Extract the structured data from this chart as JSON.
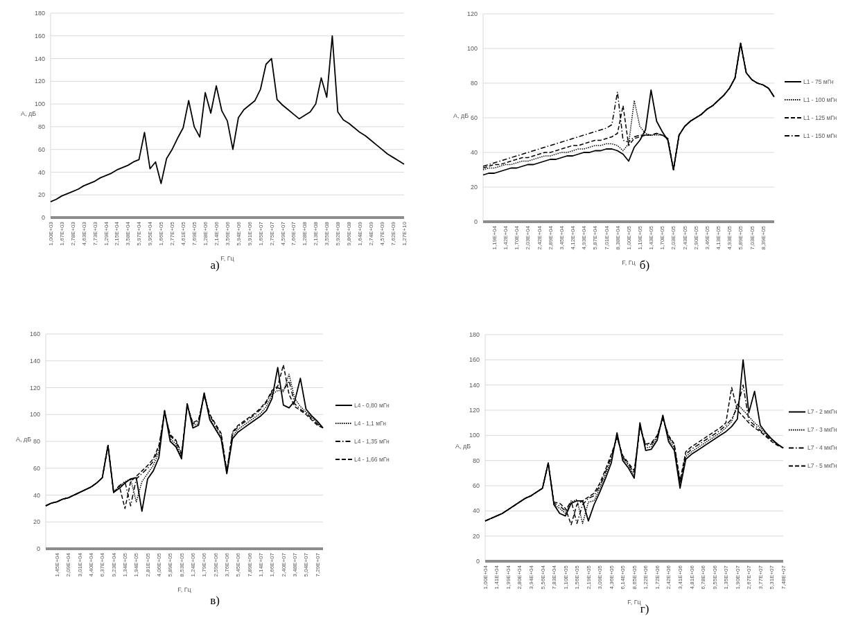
{
  "chart_data": [
    {
      "type": "line",
      "xlabel": "F, Гц",
      "ylabel": "А, дБ",
      "annotations": [
        "а)"
      ],
      "ylim": [
        0,
        180
      ],
      "yticks": [
        0,
        20,
        40,
        60,
        80,
        100,
        120,
        140,
        160,
        180
      ],
      "grid": "y",
      "legend": false,
      "categories": [
        "1,00E+03",
        null,
        "1,67E+03",
        null,
        "2,78E+03",
        null,
        "4,63E+03",
        null,
        "7,73E+03",
        null,
        "1,29E+04",
        null,
        "2,15E+04",
        null,
        "3,58E+04",
        null,
        "5,97E+04",
        null,
        "9,95E+04",
        null,
        "1,66E+05",
        null,
        "2,77E+05",
        null,
        "4,61E+05",
        null,
        "7,69E+05",
        null,
        "1,28E+06",
        null,
        "2,14E+06",
        null,
        "3,56E+06",
        null,
        "5,94E+06",
        null,
        "9,91E+06",
        null,
        "1,65E+07",
        null,
        "2,75E+07",
        null,
        "4,59E+07",
        null,
        "7,66E+07",
        null,
        "1,28E+08",
        null,
        "2,13E+08",
        null,
        "3,55E+08",
        null,
        "5,92E+08",
        null,
        "9,86E+08",
        null,
        "1,64E+09",
        null,
        "2,74E+09",
        null,
        "4,57E+09",
        null,
        "7,62E+09",
        null,
        "1,27E+10"
      ],
      "series": [
        {
          "color": "#000000",
          "line_style": "solid",
          "values": [
            14,
            16,
            19,
            21,
            23,
            25,
            28,
            30,
            32,
            35,
            37,
            39,
            42,
            44,
            46,
            49,
            51,
            75,
            43,
            49,
            30,
            52,
            60,
            70,
            79,
            103,
            80,
            71,
            110,
            92,
            116,
            94,
            85,
            60,
            88,
            95,
            99,
            103,
            113,
            135,
            140,
            104,
            99,
            95,
            91,
            87,
            90,
            93,
            100,
            123,
            106,
            160,
            93,
            86,
            83,
            79,
            75,
            72,
            68,
            64,
            60,
            56,
            53,
            50,
            47
          ]
        }
      ]
    },
    {
      "type": "line",
      "xlabel": "F, Гц",
      "ylabel": "А, дБ",
      "annotations": [
        "б)"
      ],
      "ylim": [
        0,
        120
      ],
      "yticks": [
        0,
        20,
        40,
        60,
        80,
        100,
        120
      ],
      "grid": "y",
      "legend": "right",
      "categories": [
        null,
        null,
        "1,19E+04",
        null,
        "1,42E+04",
        null,
        "1,70E+04",
        null,
        "2,03E+04",
        null,
        "2,42E+04",
        null,
        "2,89E+04",
        null,
        "3,45E+04",
        null,
        "4,12E+04",
        null,
        "4,93E+04",
        null,
        "5,87E+04",
        null,
        "7,01E+04",
        null,
        "8,38E+04",
        null,
        "1,00E+05",
        null,
        "1,19E+05",
        null,
        "1,43E+05",
        null,
        "1,70E+05",
        null,
        "2,03E+05",
        null,
        "2,43E+05",
        null,
        "2,90E+05",
        null,
        "3,46E+05",
        null,
        "4,13E+05",
        null,
        "4,93E+05",
        null,
        "5,89E+05",
        null,
        "7,03E+05",
        null,
        "8,39E+05",
        null,
        null
      ],
      "series": [
        {
          "name": "L1 - 75 мГн",
          "color": "#000000",
          "line_style": "solid",
          "values": [
            27,
            28,
            28,
            29,
            30,
            31,
            31,
            32,
            33,
            33,
            34,
            35,
            36,
            36,
            37,
            38,
            38,
            39,
            40,
            40,
            41,
            41,
            42,
            42,
            41,
            39,
            35,
            43,
            47,
            53,
            76,
            58,
            52,
            47,
            30,
            50,
            55,
            58,
            60,
            62,
            65,
            67,
            70,
            73,
            77,
            83,
            103,
            86,
            82,
            80,
            79,
            77,
            72
          ]
        },
        {
          "name": "L1 - 100 мГн",
          "color": "#000000",
          "line_style": "dotted",
          "values": [
            30,
            31,
            31,
            32,
            33,
            33,
            34,
            35,
            35,
            36,
            37,
            38,
            38,
            39,
            40,
            40,
            41,
            42,
            42,
            43,
            44,
            44,
            45,
            45,
            44,
            41,
            45,
            70,
            55,
            51,
            50,
            50,
            50,
            48,
            30,
            50,
            55,
            58,
            60,
            62,
            65,
            67,
            70,
            73,
            77,
            83,
            103,
            86,
            82,
            80,
            79,
            77,
            72
          ]
        },
        {
          "name": "L1 - 125 мГн",
          "color": "#000000",
          "line_style": "dashed",
          "values": [
            31,
            32,
            33,
            33,
            34,
            35,
            36,
            37,
            37,
            38,
            39,
            40,
            40,
            41,
            42,
            43,
            44,
            44,
            45,
            46,
            47,
            47,
            48,
            49,
            51,
            67,
            44,
            48,
            49,
            50,
            50,
            51,
            50,
            48,
            30,
            50,
            55,
            58,
            60,
            62,
            65,
            67,
            70,
            73,
            77,
            83,
            103,
            86,
            82,
            80,
            79,
            77,
            72
          ]
        },
        {
          "name": "L1 - 150 мГн",
          "color": "#000000",
          "line_style": "dashdot",
          "values": [
            32,
            33,
            34,
            35,
            36,
            37,
            38,
            39,
            40,
            41,
            42,
            43,
            44,
            45,
            46,
            47,
            48,
            49,
            50,
            51,
            52,
            53,
            54,
            56,
            75,
            47,
            46,
            49,
            50,
            50,
            50,
            51,
            50,
            48,
            30,
            50,
            55,
            58,
            60,
            62,
            65,
            67,
            70,
            73,
            77,
            83,
            103,
            86,
            82,
            80,
            79,
            77,
            72
          ]
        }
      ]
    },
    {
      "type": "line",
      "xlabel": "F, Гц",
      "ylabel": "А, дБ",
      "annotations": [
        "в)"
      ],
      "ylim": [
        0,
        160
      ],
      "yticks": [
        0,
        20,
        40,
        60,
        80,
        100,
        120,
        140,
        160
      ],
      "grid": "y",
      "legend": "right",
      "categories": [
        null,
        null,
        "1,45E+04",
        null,
        "2,09E+04",
        null,
        "3,01E+04",
        null,
        "4,40E+04",
        null,
        "6,37E+04",
        null,
        "9,23E+04",
        null,
        "1,34E+05",
        null,
        "1,94E+05",
        null,
        "2,81E+05",
        null,
        "4,06E+05",
        null,
        "5,89E+05",
        null,
        "8,53E+05",
        null,
        "1,24E+06",
        null,
        "1,79E+06",
        null,
        "2,59E+06",
        null,
        "3,76E+06",
        null,
        "5,45E+06",
        null,
        "7,89E+06",
        null,
        "1,14E+07",
        null,
        "1,66E+07",
        null,
        "2,40E+07",
        null,
        "3,48E+07",
        null,
        "5,04E+07",
        null,
        "7,29E+07",
        null
      ],
      "series": [
        {
          "name": "L4 - 0,80 мГн",
          "color": "#000000",
          "line_style": "solid",
          "values": [
            32,
            34,
            35,
            37,
            38,
            40,
            42,
            44,
            46,
            49,
            53,
            77,
            42,
            45,
            49,
            52,
            53,
            28,
            52,
            58,
            68,
            103,
            80,
            76,
            67,
            108,
            90,
            92,
            116,
            96,
            89,
            82,
            56,
            82,
            87,
            90,
            93,
            96,
            99,
            103,
            112,
            135,
            107,
            105,
            110,
            127,
            104,
            99,
            95,
            90
          ]
        },
        {
          "name": "L4 - 1,1 мГн",
          "color": "#000000",
          "line_style": "dotted",
          "values": [
            32,
            34,
            35,
            37,
            38,
            40,
            42,
            44,
            46,
            49,
            53,
            77,
            42,
            46,
            50,
            52,
            35,
            50,
            56,
            62,
            72,
            103,
            82,
            78,
            68,
            108,
            92,
            93,
            116,
            97,
            90,
            83,
            56,
            84,
            89,
            92,
            95,
            98,
            101,
            106,
            115,
            118,
            117,
            130,
            112,
            106,
            102,
            98,
            94,
            90
          ]
        },
        {
          "name": "L4 - 1,35 мГн",
          "color": "#000000",
          "line_style": "dashdot",
          "values": [
            32,
            34,
            35,
            37,
            38,
            40,
            42,
            44,
            46,
            49,
            53,
            77,
            42,
            47,
            50,
            32,
            52,
            56,
            60,
            65,
            75,
            102,
            84,
            80,
            70,
            107,
            93,
            95,
            115,
            99,
            92,
            85,
            57,
            86,
            91,
            94,
            97,
            100,
            104,
            109,
            117,
            120,
            118,
            125,
            108,
            104,
            101,
            97,
            93,
            90
          ]
        },
        {
          "name": "L4 - 1,66 мГн",
          "color": "#000000",
          "line_style": "dashed",
          "values": [
            32,
            34,
            35,
            37,
            38,
            40,
            42,
            44,
            46,
            49,
            53,
            77,
            42,
            47,
            30,
            50,
            54,
            58,
            62,
            67,
            77,
            101,
            85,
            81,
            71,
            106,
            94,
            96,
            114,
            100,
            93,
            86,
            58,
            87,
            92,
            95,
            98,
            101,
            105,
            110,
            118,
            121,
            137,
            115,
            106,
            103,
            100,
            96,
            92,
            90
          ]
        }
      ]
    },
    {
      "type": "line",
      "xlabel": "F, Гц",
      "ylabel": "А, дБ",
      "annotations": [
        "г)"
      ],
      "ylim": [
        0,
        180
      ],
      "yticks": [
        0,
        20,
        40,
        60,
        80,
        100,
        120,
        140,
        160,
        180
      ],
      "grid": "y",
      "legend": "right",
      "categories": [
        "1,00E+04",
        null,
        "1,41E+04",
        null,
        "1,99E+04",
        null,
        "2,80E+04",
        null,
        "3,94E+04",
        null,
        "5,56E+04",
        null,
        "7,83E+04",
        null,
        "1,10E+05",
        null,
        "1,56E+05",
        null,
        "2,19E+05",
        null,
        "3,09E+05",
        null,
        "4,36E+05",
        null,
        "6,14E+05",
        null,
        "8,65E+05",
        null,
        "1,22E+06",
        null,
        "1,72E+06",
        null,
        "2,42E+06",
        null,
        "3,41E+06",
        null,
        "4,81E+06",
        null,
        "6,78E+06",
        null,
        "9,55E+06",
        null,
        "1,35E+07",
        null,
        "1,90E+07",
        null,
        "2,67E+07",
        null,
        "3,77E+07",
        null,
        "5,31E+07",
        null,
        "7,48E+07"
      ],
      "series": [
        {
          "name": "L7 - 2 мкГн",
          "color": "#000000",
          "line_style": "solid",
          "values": [
            32,
            34,
            36,
            38,
            41,
            44,
            47,
            50,
            52,
            55,
            58,
            78,
            45,
            38,
            36,
            46,
            48,
            48,
            32,
            45,
            55,
            66,
            78,
            102,
            80,
            74,
            66,
            110,
            88,
            89,
            96,
            116,
            95,
            88,
            58,
            81,
            85,
            88,
            91,
            94,
            97,
            100,
            103,
            107,
            113,
            160,
            118,
            135,
            108,
            102,
            97,
            93,
            90
          ]
        },
        {
          "name": "L7 - 3 мкГн",
          "color": "#000000",
          "line_style": "dotted",
          "values": [
            32,
            34,
            36,
            38,
            41,
            44,
            47,
            50,
            52,
            55,
            58,
            78,
            45,
            42,
            38,
            47,
            49,
            30,
            47,
            48,
            58,
            69,
            81,
            100,
            82,
            76,
            68,
            108,
            90,
            91,
            98,
            115,
            97,
            90,
            60,
            83,
            87,
            90,
            93,
            96,
            99,
            102,
            106,
            111,
            125,
            120,
            115,
            110,
            106,
            101,
            97,
            93,
            90
          ]
        },
        {
          "name": "L7 - 4 мкГн",
          "color": "#000000",
          "line_style": "dashdot",
          "values": [
            32,
            34,
            36,
            38,
            41,
            44,
            47,
            50,
            52,
            55,
            58,
            78,
            46,
            44,
            40,
            48,
            30,
            45,
            50,
            52,
            60,
            71,
            83,
            99,
            83,
            77,
            70,
            107,
            92,
            93,
            99,
            114,
            99,
            92,
            62,
            85,
            89,
            92,
            95,
            98,
            101,
            104,
            108,
            113,
            122,
            140,
            112,
            108,
            104,
            100,
            96,
            93,
            90
          ]
        },
        {
          "name": "L7 - 5 мкГн",
          "color": "#000000",
          "line_style": "dashed",
          "values": [
            32,
            34,
            36,
            38,
            41,
            44,
            47,
            50,
            52,
            55,
            58,
            78,
            47,
            46,
            42,
            29,
            45,
            48,
            51,
            54,
            62,
            73,
            85,
            98,
            84,
            78,
            72,
            106,
            93,
            94,
            100,
            113,
            100,
            93,
            64,
            87,
            91,
            94,
            97,
            100,
            103,
            106,
            110,
            138,
            120,
            115,
            110,
            106,
            103,
            99,
            95,
            92,
            90
          ]
        }
      ]
    }
  ]
}
